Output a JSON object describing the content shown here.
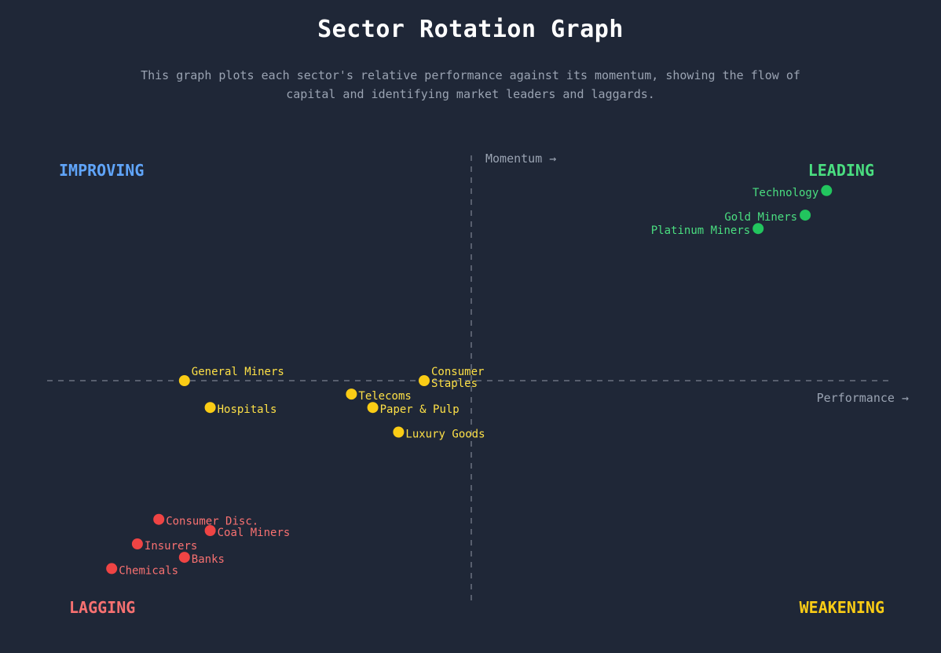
{
  "header": {
    "title": "Sector Rotation Graph",
    "subtitle": "This graph plots each sector's relative performance against its momentum, showing the flow of capital and identifying market leaders and laggards."
  },
  "colors": {
    "background": "#1f2737",
    "leading": "#22c55e",
    "improving": "#60a5fa",
    "weakening": "#facc15",
    "lagging": "#ef4444",
    "axis": "#6b7280"
  },
  "chart_data": {
    "type": "scatter",
    "xlabel": "Performance →",
    "ylabel": "Momentum →",
    "xlim": [
      -100,
      100
    ],
    "ylim": [
      -100,
      100
    ],
    "grid": false,
    "quadrants": {
      "improving": "IMPROVING",
      "leading": "LEADING",
      "lagging": "LAGGING",
      "weakening": "WEAKENING"
    },
    "points": [
      {
        "name": "Technology",
        "x": 83,
        "y": 85,
        "group": "leading",
        "label_side": "left"
      },
      {
        "name": "Gold Miners",
        "x": 78,
        "y": 74,
        "group": "leading",
        "label_side": "left"
      },
      {
        "name": "Platinum Miners",
        "x": 67,
        "y": 68,
        "group": "leading",
        "label_side": "left"
      },
      {
        "name": "General Miners",
        "x": -67,
        "y": 0,
        "group": "weakening",
        "label_side": "above-right"
      },
      {
        "name": "Consumer Staples",
        "x": -11,
        "y": 0,
        "group": "weakening",
        "label_side": "right-two-line"
      },
      {
        "name": "Telecoms",
        "x": -28,
        "y": -6,
        "group": "weakening",
        "label_side": "right"
      },
      {
        "name": "Hospitals",
        "x": -61,
        "y": -12,
        "group": "weakening",
        "label_side": "right"
      },
      {
        "name": "Paper & Pulp",
        "x": -23,
        "y": -12,
        "group": "weakening",
        "label_side": "right"
      },
      {
        "name": "Luxury Goods",
        "x": -17,
        "y": -23,
        "group": "weakening",
        "label_side": "right"
      },
      {
        "name": "Consumer Disc.",
        "x": -73,
        "y": -62,
        "group": "lagging",
        "label_side": "right"
      },
      {
        "name": "Coal Miners",
        "x": -61,
        "y": -67,
        "group": "lagging",
        "label_side": "right"
      },
      {
        "name": "Insurers",
        "x": -78,
        "y": -73,
        "group": "lagging",
        "label_side": "right"
      },
      {
        "name": "Banks",
        "x": -67,
        "y": -79,
        "group": "lagging",
        "label_side": "right"
      },
      {
        "name": "Chemicals",
        "x": -84,
        "y": -84,
        "group": "lagging",
        "label_side": "right"
      }
    ]
  }
}
